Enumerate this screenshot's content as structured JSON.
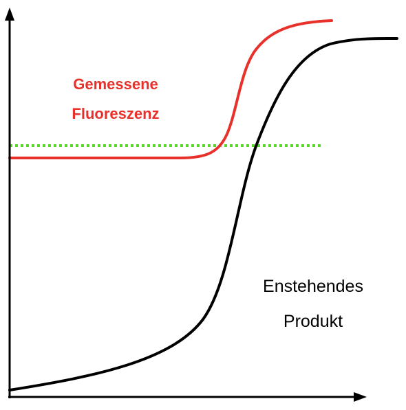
{
  "labels": {
    "fluorescence_line1": "Gemessene",
    "fluorescence_line2": "Fluoreszenz",
    "product_line1": "Enstehendes",
    "product_line2": "Produkt"
  },
  "colors": {
    "fluorescence": "#e8312b",
    "product": "#000000",
    "threshold": "#5cd62e",
    "axes": "#000000"
  }
}
